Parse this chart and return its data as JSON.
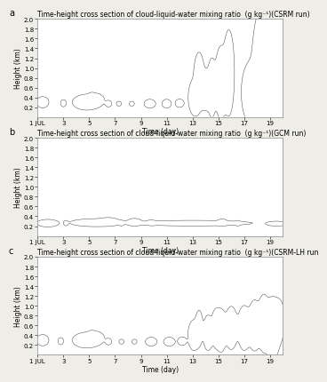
{
  "title_a": "Time-height cross section of cloud-liquid-water mixing ratio  (g kg⁻¹)(CSRM run)",
  "title_b": "Time-height cross section of cloud-liquid-water mixing ratio  (g kg⁻¹)(GCM run)",
  "title_c": "Time-height cross section of cloud-liquid-water mixing ratio  (g kg⁻¹)(CSRM-LH run",
  "xlabel": "Time (day)",
  "ylabel": "Height (km)",
  "xlim": [
    1,
    20
  ],
  "ylim": [
    0.0,
    2.0
  ],
  "yticks": [
    0.2,
    0.4,
    0.6,
    0.8,
    1.0,
    1.2,
    1.4,
    1.6,
    1.8,
    2.0
  ],
  "xticks": [
    1,
    3,
    5,
    7,
    9,
    11,
    13,
    15,
    17,
    19
  ],
  "xticklabels": [
    "1 JUL",
    "3",
    "5",
    "7",
    "9",
    "11",
    "13",
    "15",
    "17",
    "19"
  ],
  "panel_labels": [
    "a",
    "b",
    "c"
  ],
  "bg_color": "#eeede8",
  "plot_bg_color": "#ffffff",
  "title_fontsize": 5.5,
  "label_fontsize": 5.5,
  "tick_fontsize": 5.0,
  "contour_color": "#444444",
  "contour_linewidth": 0.35
}
